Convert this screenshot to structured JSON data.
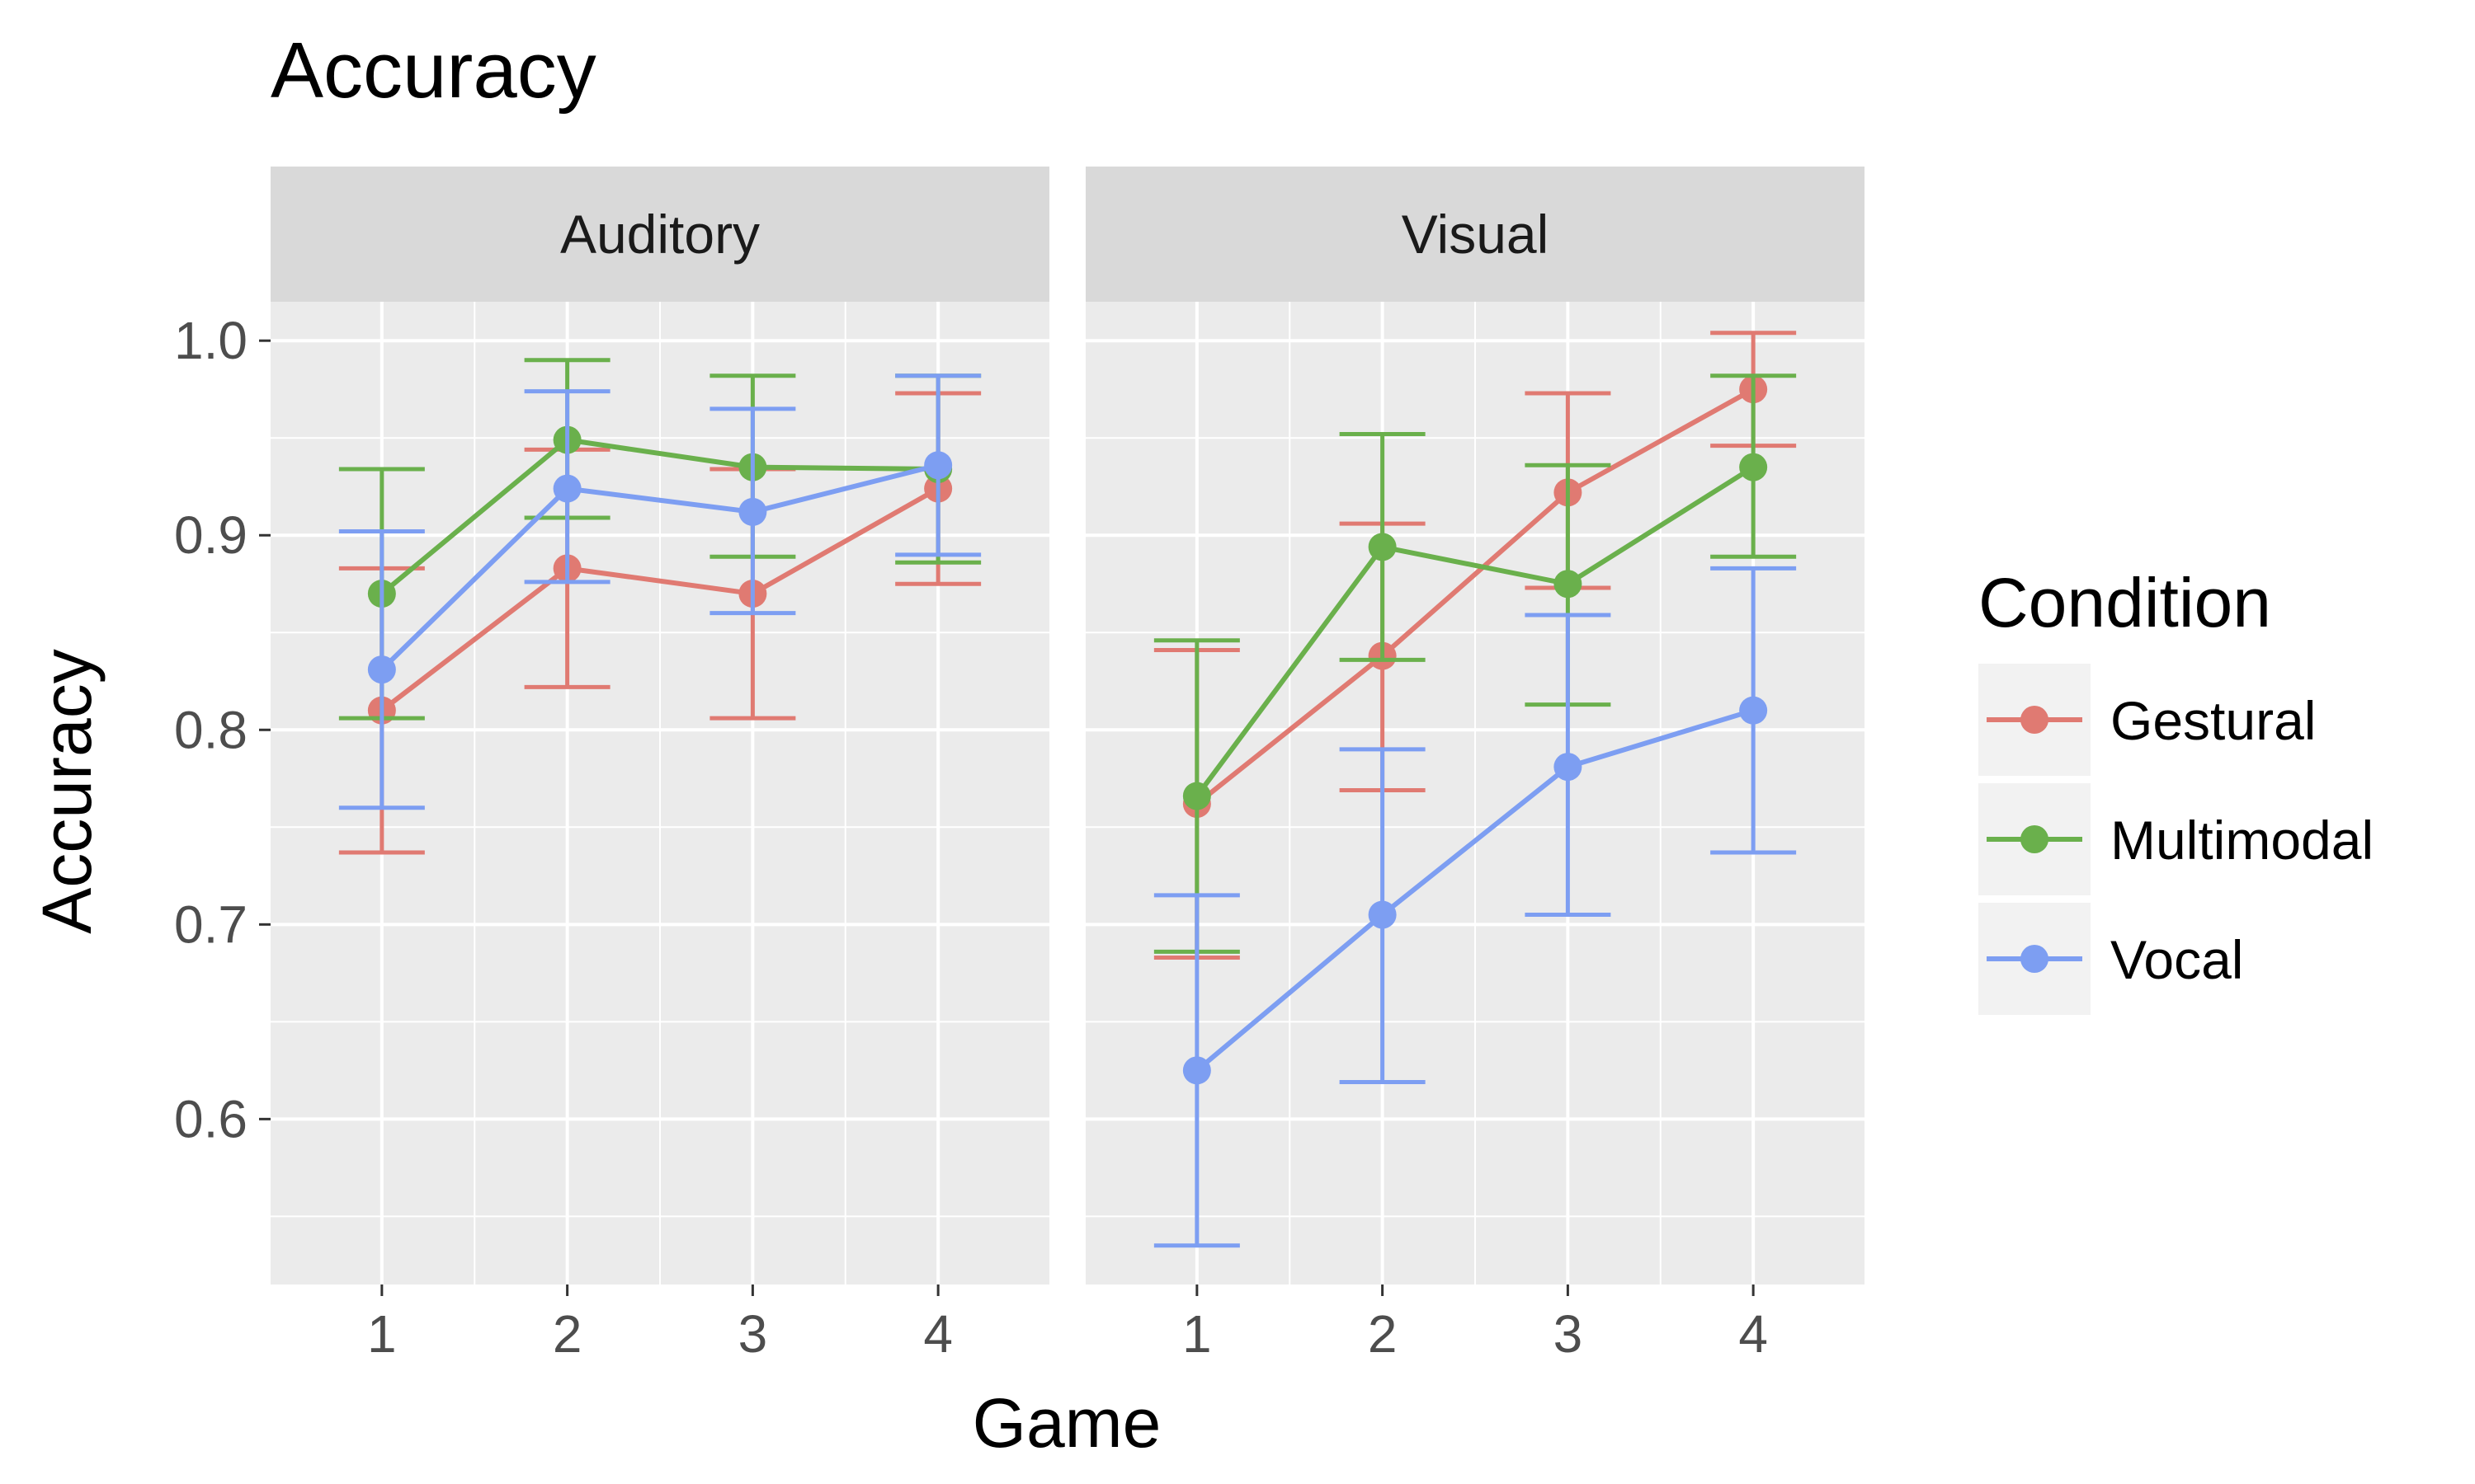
{
  "chart_data": {
    "type": "line",
    "title": "Accuracy",
    "xlabel": "Game",
    "ylabel": "Accuracy",
    "x": [
      1,
      2,
      3,
      4
    ],
    "x_tick_labels": [
      "1",
      "2",
      "3",
      "4"
    ],
    "ylim": [
      0.515,
      1.02
    ],
    "y_ticks": [
      0.6,
      0.7,
      0.8,
      0.9,
      1.0
    ],
    "y_tick_labels": [
      "0.6",
      "0.7",
      "0.8",
      "0.9",
      "1.0"
    ],
    "grid": true,
    "legend": {
      "title": "Condition",
      "position": "right"
    },
    "colors": {
      "Gestural": "#e07a72",
      "Multimodal": "#6ab04c",
      "Vocal": "#7d9ef2"
    },
    "facets": [
      {
        "label": "Auditory",
        "series": [
          {
            "name": "Gestural",
            "values": [
              0.81,
              0.883,
              0.87,
              0.924
            ],
            "lower": [
              0.737,
              0.822,
              0.806,
              0.875
            ],
            "upper": [
              0.883,
              0.944,
              0.934,
              0.973
            ]
          },
          {
            "name": "Multimodal",
            "values": [
              0.87,
              0.949,
              0.935,
              0.934
            ],
            "lower": [
              0.806,
              0.909,
              0.889,
              0.886
            ],
            "upper": [
              0.934,
              0.99,
              0.982,
              0.982
            ]
          },
          {
            "name": "Vocal",
            "values": [
              0.831,
              0.924,
              0.912,
              0.936
            ],
            "lower": [
              0.76,
              0.876,
              0.86,
              0.89
            ],
            "upper": [
              0.902,
              0.974,
              0.965,
              0.982
            ]
          }
        ]
      },
      {
        "label": "Visual",
        "series": [
          {
            "name": "Gestural",
            "values": [
              0.762,
              0.838,
              0.922,
              0.975
            ],
            "lower": [
              0.683,
              0.769,
              0.873,
              0.946
            ],
            "upper": [
              0.841,
              0.906,
              0.973,
              1.004
            ]
          },
          {
            "name": "Multimodal",
            "values": [
              0.766,
              0.894,
              0.875,
              0.935
            ],
            "lower": [
              0.686,
              0.836,
              0.813,
              0.889
            ],
            "upper": [
              0.846,
              0.952,
              0.936,
              0.982
            ]
          },
          {
            "name": "Vocal",
            "values": [
              0.625,
              0.705,
              0.781,
              0.81
            ],
            "lower": [
              0.535,
              0.619,
              0.705,
              0.737
            ],
            "upper": [
              0.715,
              0.79,
              0.859,
              0.883
            ]
          }
        ]
      }
    ]
  }
}
